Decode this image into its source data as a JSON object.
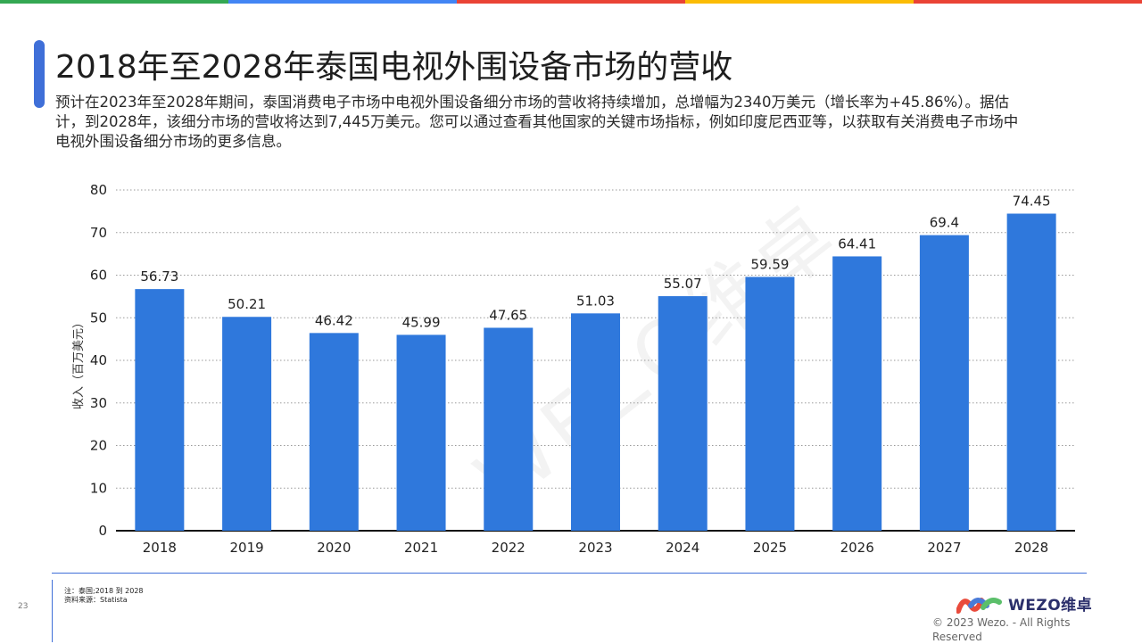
{
  "top_bar_colors": [
    "#34a853",
    "#4285f4",
    "#ea4335",
    "#fbbc05",
    "#ea4335"
  ],
  "title": "2018年至2028年泰国电视外围设备市场的营收",
  "description": "预计在2023年至2028年期间，泰国消费电子市场中电视外围设备细分市场的营收将持续增加，总增幅为2340万美元（增长率为+45.86%）。据估计，到2028年，该细分市场的营收将达到7,445万美元。您可以通过查看其他国家的关键市场指标，例如印度尼西亚等，以获取有关消费电子市场中电视外围设备细分市场的更多信息。",
  "chart_data": {
    "type": "bar",
    "categories": [
      "2018",
      "2019",
      "2020",
      "2021",
      "2022",
      "2023",
      "2024",
      "2025",
      "2026",
      "2027",
      "2028"
    ],
    "values": [
      56.73,
      50.21,
      46.42,
      45.99,
      47.65,
      51.03,
      55.07,
      59.59,
      64.41,
      69.4,
      74.45
    ],
    "ylabel": "收入（百万美元）",
    "ylim": [
      0,
      80
    ],
    "yticks": [
      0,
      10,
      20,
      30,
      40,
      50,
      60,
      70,
      80
    ],
    "grid": "horizontal-dotted",
    "bar_color": "#2f78dc"
  },
  "watermark": "WEZO维卓",
  "footer": {
    "page_number": "23",
    "note": "注：泰国;2018 到 2028",
    "source": "资料来源：Statista",
    "logo_text": "WEZO维卓",
    "copyright": "© 2023 Wezo. - All Rights Reserved"
  }
}
